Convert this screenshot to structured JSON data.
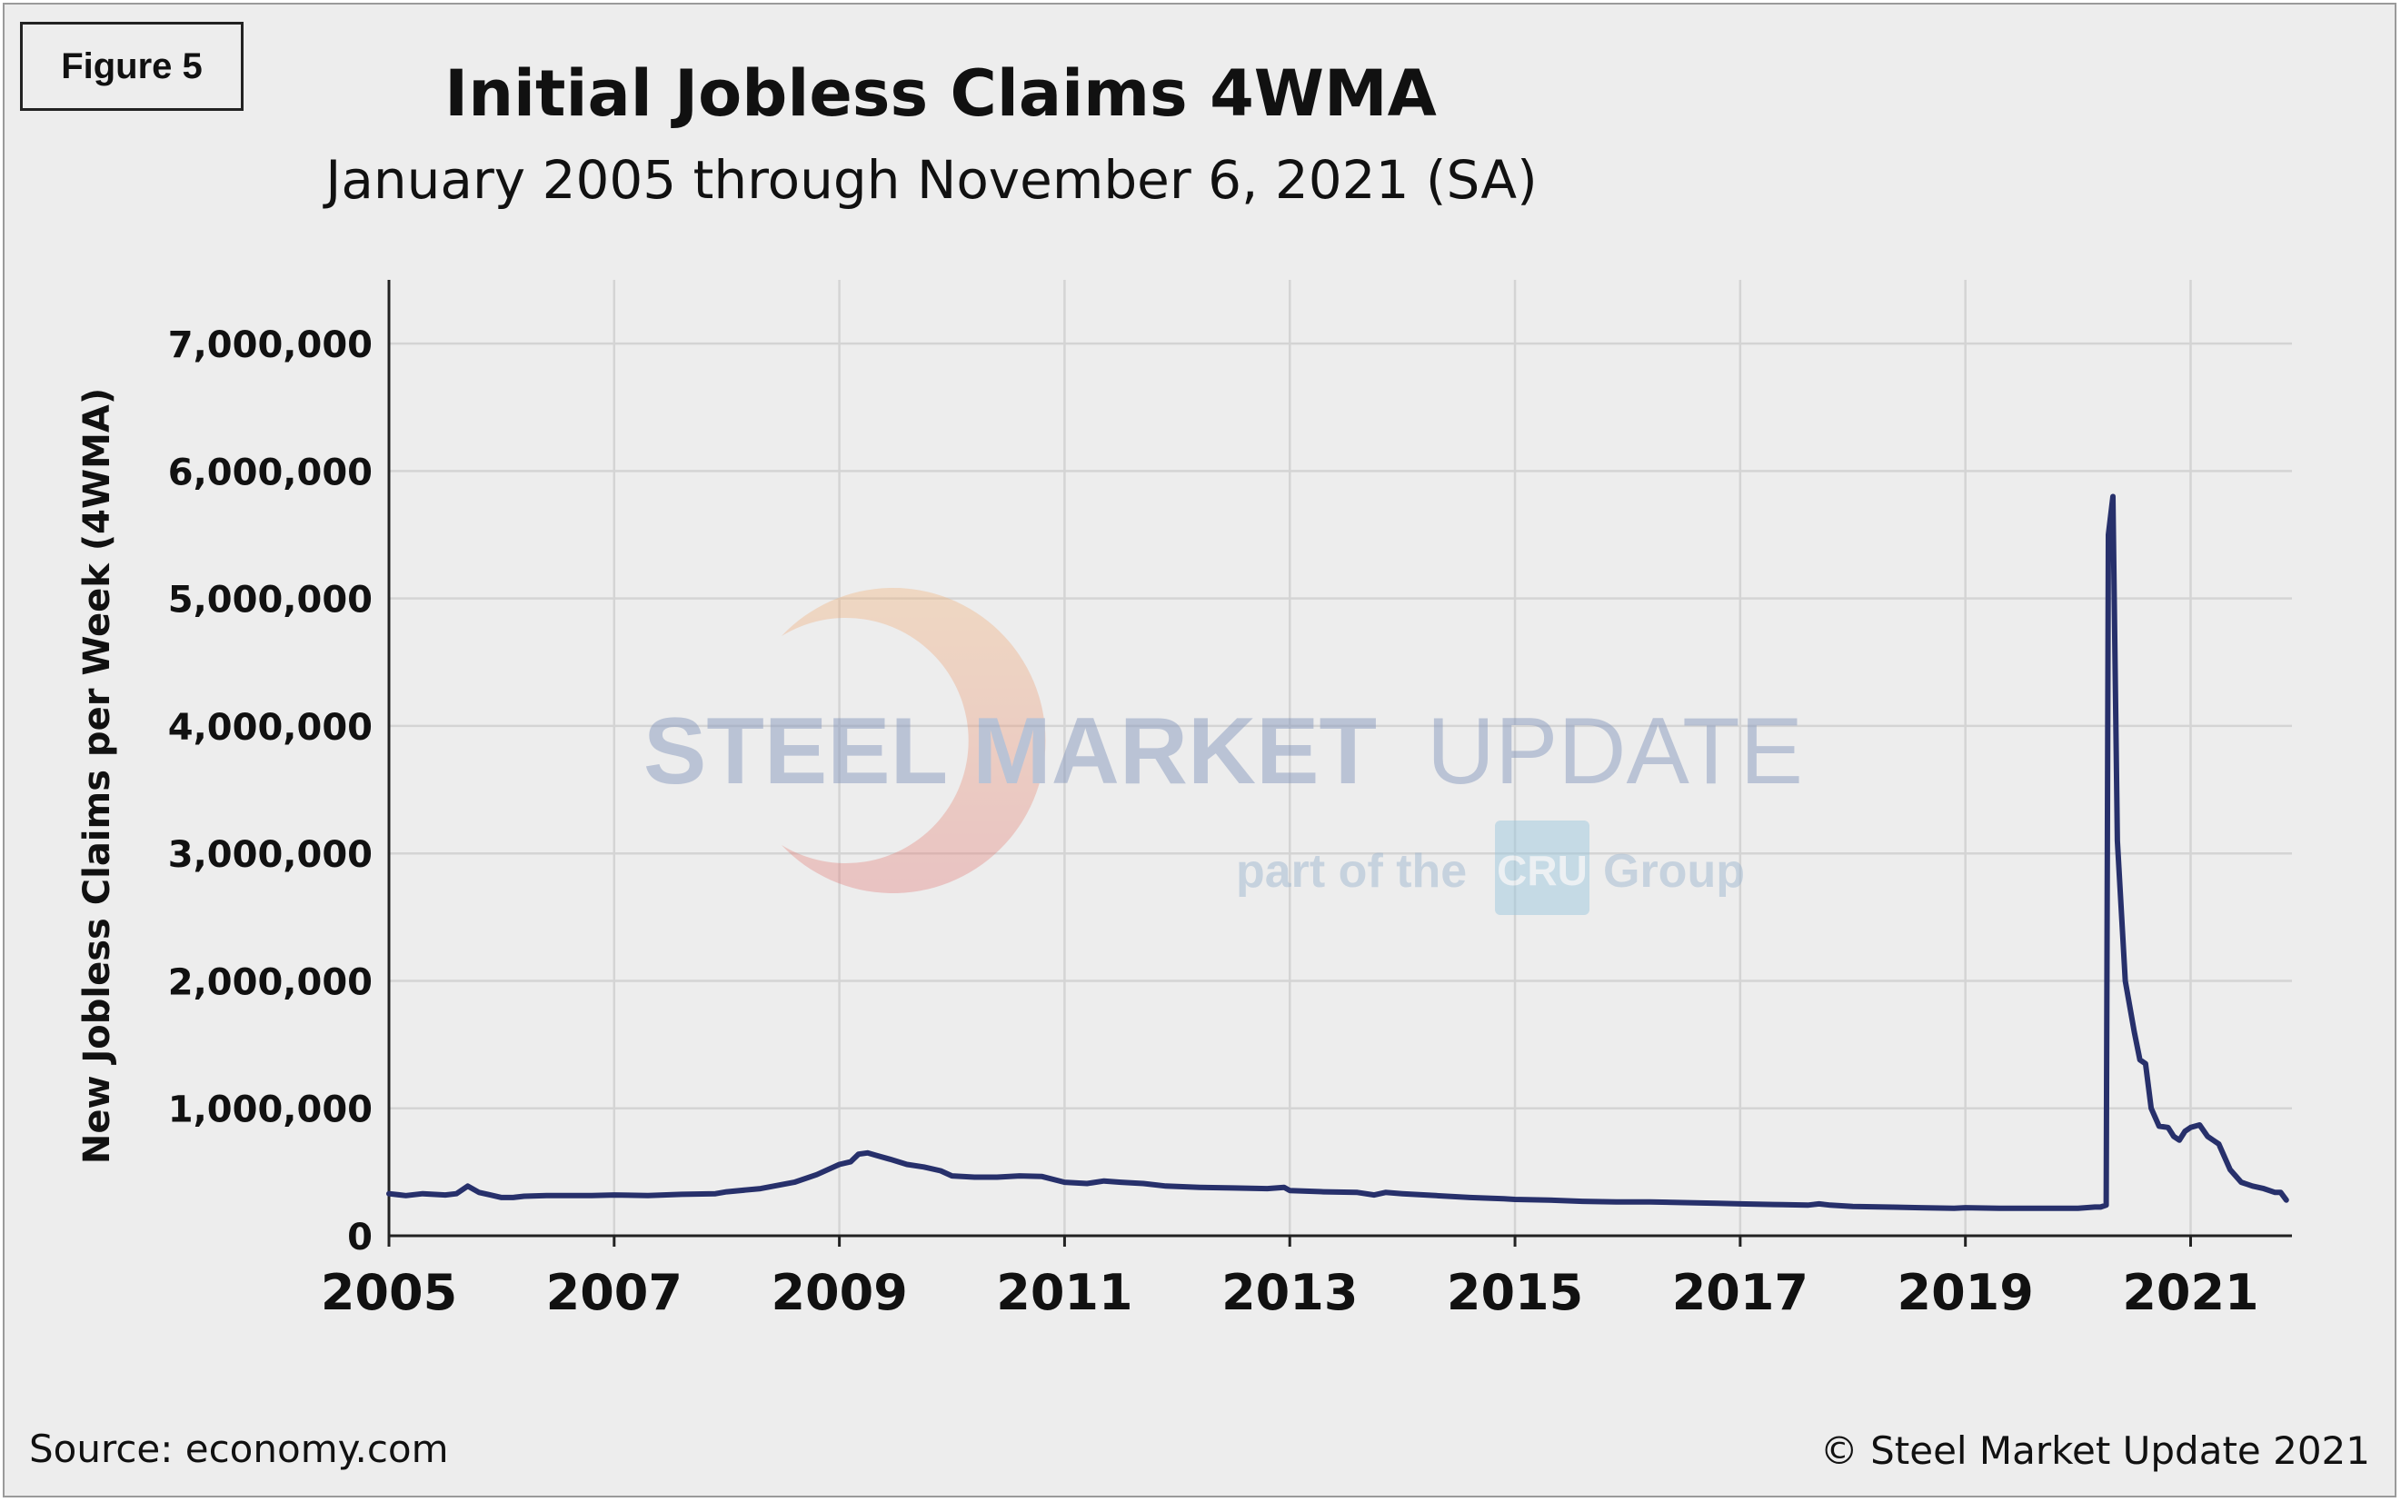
{
  "figure_label": "Figure 5",
  "footer": {
    "source": "Source: economy.com",
    "copyright": "© Steel Market Update 2021"
  },
  "watermark": {
    "brand_bold": "STEEL MARKET",
    "brand_light": "UPDATE",
    "tagline_prefix": "part of the",
    "tagline_logo": "CRU",
    "tagline_suffix": "Group"
  },
  "colors": {
    "line": "#27306b",
    "grid": "#d4d4d4",
    "axis": "#222222",
    "background": "#ededed"
  },
  "chart_data": {
    "type": "line",
    "title": "Initial Jobless Claims 4WMA",
    "subtitle": "January 2005 through November 6, 2021 (SA)",
    "xlabel": "",
    "ylabel": "New Jobless Claims per Week (4WMA)",
    "xlim": [
      2005,
      2021.9
    ],
    "ylim": [
      0,
      7500000
    ],
    "xticks": [
      2005,
      2007,
      2009,
      2011,
      2013,
      2015,
      2017,
      2019,
      2021
    ],
    "xtick_labels": [
      "2005",
      "2007",
      "2009",
      "2011",
      "2013",
      "2015",
      "2017",
      "2019",
      "2021"
    ],
    "yticks": [
      0,
      1000000,
      2000000,
      3000000,
      4000000,
      5000000,
      6000000,
      7000000
    ],
    "ytick_labels": [
      "0",
      "1,000,000",
      "2,000,000",
      "3,000,000",
      "4,000,000",
      "5,000,000",
      "6,000,000",
      "7,000,000"
    ],
    "grid": true,
    "series": [
      {
        "name": "Initial Jobless Claims 4WMA",
        "x": [
          2005.0,
          2005.15,
          2005.3,
          2005.5,
          2005.6,
          2005.7,
          2005.8,
          2005.9,
          2006.0,
          2006.1,
          2006.2,
          2006.4,
          2006.6,
          2006.8,
          2007.0,
          2007.3,
          2007.6,
          2007.9,
          2008.0,
          2008.3,
          2008.6,
          2008.8,
          2009.0,
          2009.1,
          2009.17,
          2009.25,
          2009.33,
          2009.45,
          2009.6,
          2009.75,
          2009.9,
          2010.0,
          2010.2,
          2010.4,
          2010.6,
          2010.8,
          2011.0,
          2011.2,
          2011.35,
          2011.5,
          2011.7,
          2011.9,
          2012.2,
          2012.5,
          2012.8,
          2012.95,
          2013.0,
          2013.3,
          2013.6,
          2013.75,
          2013.85,
          2014.0,
          2014.3,
          2014.6,
          2014.9,
          2015.0,
          2015.3,
          2015.6,
          2015.9,
          2016.2,
          2016.5,
          2016.8,
          2017.0,
          2017.3,
          2017.6,
          2017.7,
          2017.8,
          2018.0,
          2018.3,
          2018.6,
          2018.9,
          2019.0,
          2019.3,
          2019.6,
          2019.9,
          2020.0,
          2020.15,
          2020.2,
          2020.25,
          2020.27,
          2020.31,
          2020.35,
          2020.42,
          2020.5,
          2020.55,
          2020.6,
          2020.65,
          2020.72,
          2020.8,
          2020.85,
          2020.9,
          2020.95,
          2021.0,
          2021.08,
          2021.15,
          2021.2,
          2021.25,
          2021.35,
          2021.45,
          2021.55,
          2021.65,
          2021.75,
          2021.8,
          2021.85
        ],
        "values": [
          330000,
          315000,
          330000,
          320000,
          330000,
          390000,
          340000,
          320000,
          300000,
          300000,
          310000,
          315000,
          315000,
          315000,
          320000,
          315000,
          325000,
          330000,
          345000,
          370000,
          420000,
          480000,
          560000,
          580000,
          640000,
          650000,
          630000,
          600000,
          560000,
          540000,
          510000,
          470000,
          460000,
          460000,
          470000,
          465000,
          420000,
          410000,
          430000,
          420000,
          410000,
          390000,
          380000,
          375000,
          370000,
          380000,
          355000,
          345000,
          340000,
          320000,
          340000,
          330000,
          315000,
          300000,
          290000,
          285000,
          280000,
          270000,
          265000,
          265000,
          260000,
          255000,
          250000,
          245000,
          240000,
          250000,
          240000,
          230000,
          225000,
          220000,
          215000,
          220000,
          215000,
          215000,
          215000,
          215000,
          225000,
          225000,
          240000,
          5500000,
          5800000,
          3100000,
          2000000,
          1600000,
          1380000,
          1350000,
          1000000,
          860000,
          850000,
          780000,
          750000,
          820000,
          850000,
          870000,
          780000,
          750000,
          720000,
          520000,
          420000,
          390000,
          370000,
          340000,
          340000,
          280000
        ]
      }
    ]
  }
}
